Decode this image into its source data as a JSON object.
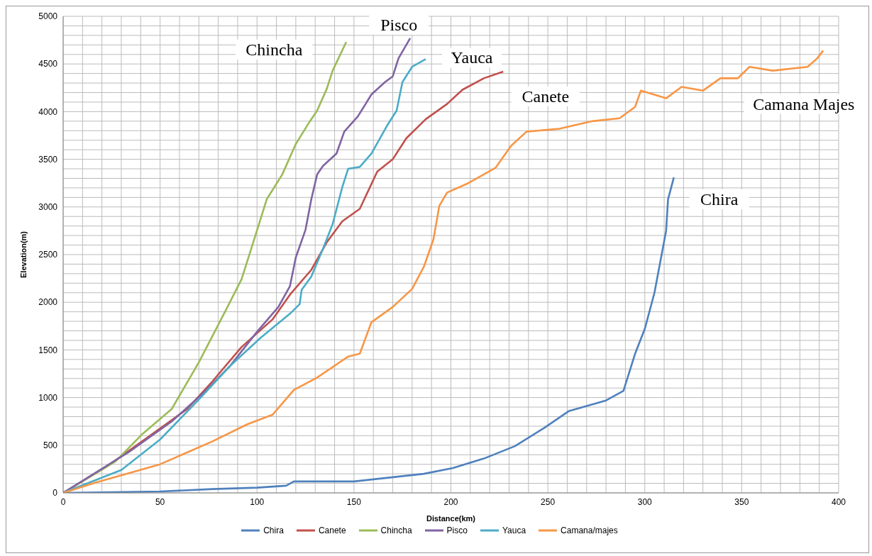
{
  "chart_data": {
    "type": "line",
    "xlabel": "Distance(km)",
    "ylabel": "Elevation(m)",
    "xlim": [
      0,
      400
    ],
    "ylim": [
      0,
      5000
    ],
    "xticks": [
      0,
      {
        "value": 10,
        "label": null
      },
      {
        "value": 20,
        "label": null
      },
      {
        "value": 30,
        "label": null
      },
      {
        "value": 40,
        "label": null
      },
      50,
      {
        "value": 60,
        "label": null
      },
      {
        "value": 70,
        "label": null
      },
      {
        "value": 80,
        "label": null
      },
      {
        "value": 90,
        "label": null
      },
      100,
      {
        "value": 110,
        "label": null
      },
      {
        "value": 120,
        "label": null
      },
      {
        "value": 130,
        "label": null
      },
      {
        "value": 140,
        "label": null
      },
      150,
      {
        "value": 160,
        "label": null
      },
      {
        "value": 170,
        "label": null
      },
      {
        "value": 180,
        "label": null
      },
      {
        "value": 190,
        "label": null
      },
      200,
      {
        "value": 210,
        "label": null
      },
      {
        "value": 220,
        "label": null
      },
      {
        "value": 230,
        "label": null
      },
      {
        "value": 240,
        "label": null
      },
      250,
      {
        "value": 260,
        "label": null
      },
      {
        "value": 270,
        "label": null
      },
      {
        "value": 280,
        "label": null
      },
      {
        "value": 290,
        "label": null
      },
      300,
      {
        "value": 310,
        "label": null
      },
      {
        "value": 320,
        "label": null
      },
      {
        "value": 330,
        "label": null
      },
      {
        "value": 340,
        "label": null
      },
      350,
      {
        "value": 360,
        "label": null
      },
      {
        "value": 370,
        "label": null
      },
      {
        "value": 380,
        "label": null
      },
      {
        "value": 390,
        "label": null
      },
      400
    ],
    "yticks": [
      0,
      {
        "value": 100,
        "label": null
      },
      {
        "value": 200,
        "label": null
      },
      {
        "value": 300,
        "label": null
      },
      {
        "value": 400,
        "label": null
      },
      500,
      {
        "value": 600,
        "label": null
      },
      {
        "value": 700,
        "label": null
      },
      {
        "value": 800,
        "label": null
      },
      {
        "value": 900,
        "label": null
      },
      1000,
      {
        "value": 1100,
        "label": null
      },
      {
        "value": 1200,
        "label": null
      },
      {
        "value": 1300,
        "label": null
      },
      {
        "value": 1400,
        "label": null
      },
      1500,
      {
        "value": 1600,
        "label": null
      },
      {
        "value": 1700,
        "label": null
      },
      {
        "value": 1800,
        "label": null
      },
      {
        "value": 1900,
        "label": null
      },
      2000,
      {
        "value": 2100,
        "label": null
      },
      {
        "value": 2200,
        "label": null
      },
      {
        "value": 2300,
        "label": null
      },
      {
        "value": 2400,
        "label": null
      },
      2500,
      {
        "value": 2600,
        "label": null
      },
      {
        "value": 2700,
        "label": null
      },
      {
        "value": 2800,
        "label": null
      },
      {
        "value": 2900,
        "label": null
      },
      3000,
      {
        "value": 3100,
        "label": null
      },
      {
        "value": 3200,
        "label": null
      },
      {
        "value": 3300,
        "label": null
      },
      {
        "value": 3400,
        "label": null
      },
      3500,
      {
        "value": 3600,
        "label": null
      },
      {
        "value": 3700,
        "label": null
      },
      {
        "value": 3800,
        "label": null
      },
      {
        "value": 3900,
        "label": null
      },
      4000,
      {
        "value": 4100,
        "label": null
      },
      {
        "value": 4200,
        "label": null
      },
      {
        "value": 4300,
        "label": null
      },
      {
        "value": 4400,
        "label": null
      },
      4500,
      {
        "value": 4600,
        "label": null
      },
      {
        "value": 4700,
        "label": null
      },
      {
        "value": 4800,
        "label": null
      },
      {
        "value": 4900,
        "label": null
      },
      5000
    ],
    "grid": true,
    "legend": "bottom",
    "series": [
      {
        "name": "Chira",
        "color": "#4f81bd",
        "x": [
          0,
          50,
          77,
          100,
          115,
          119,
          150,
          186,
          201,
          217,
          233,
          248,
          261,
          280,
          289,
          295,
          300,
          305,
          311,
          312,
          315
        ],
        "values": [
          0,
          15,
          40,
          55,
          75,
          120,
          120,
          200,
          260,
          360,
          490,
          680,
          860,
          970,
          1070,
          1460,
          1720,
          2100,
          2750,
          3080,
          3310
        ]
      },
      {
        "name": "Canete",
        "color": "#c0504d",
        "x": [
          0,
          22,
          42,
          64,
          77,
          92,
          108,
          117,
          128,
          136,
          144,
          153,
          162,
          170,
          177,
          187,
          198,
          206,
          217,
          227
        ],
        "values": [
          0,
          270,
          560,
          880,
          1170,
          1530,
          1820,
          2080,
          2340,
          2630,
          2850,
          2980,
          3370,
          3500,
          3720,
          3920,
          4080,
          4230,
          4350,
          4420
        ]
      },
      {
        "name": "Chincha",
        "color": "#9bbb59",
        "x": [
          0,
          27,
          41,
          56,
          70,
          84,
          92,
          97,
          105,
          113,
          120,
          127,
          131,
          136,
          139,
          146
        ],
        "values": [
          0,
          330,
          620,
          880,
          1370,
          1920,
          2240,
          2560,
          3080,
          3340,
          3660,
          3890,
          4010,
          4240,
          4430,
          4730
        ]
      },
      {
        "name": "Pisco",
        "color": "#8064a2",
        "x": [
          0,
          34,
          56,
          73,
          86,
          100,
          111,
          117,
          120,
          125,
          128,
          131,
          134,
          141,
          145,
          152,
          156,
          159,
          166,
          170,
          173,
          179
        ],
        "values": [
          0,
          430,
          750,
          1060,
          1330,
          1690,
          1950,
          2170,
          2470,
          2760,
          3080,
          3340,
          3430,
          3560,
          3790,
          3950,
          4080,
          4180,
          4310,
          4370,
          4560,
          4770
        ]
      },
      {
        "name": "Yauca",
        "color": "#4bacc6",
        "x": [
          0,
          30,
          50,
          70,
          86,
          102,
          117,
          122,
          123,
          128,
          134,
          139,
          144,
          147,
          153,
          159,
          167,
          172,
          175,
          180,
          187
        ],
        "values": [
          0,
          240,
          560,
          980,
          1330,
          1630,
          1880,
          1980,
          2130,
          2270,
          2560,
          2820,
          3210,
          3400,
          3420,
          3560,
          3850,
          4010,
          4310,
          4470,
          4550
        ]
      },
      {
        "name": "Camana/majes",
        "color": "#f79646",
        "x": [
          0,
          17,
          50,
          77,
          95,
          108,
          119,
          131,
          147,
          153,
          159,
          170,
          180,
          186,
          191,
          194,
          198,
          209,
          223,
          231,
          239,
          256,
          273,
          287,
          295,
          298,
          311,
          319,
          330,
          339,
          348,
          354,
          366,
          384,
          389,
          392
        ],
        "values": [
          0,
          110,
          300,
          540,
          720,
          820,
          1080,
          1210,
          1430,
          1460,
          1790,
          1950,
          2140,
          2370,
          2660,
          3010,
          3150,
          3250,
          3410,
          3640,
          3790,
          3820,
          3900,
          3930,
          4050,
          4220,
          4140,
          4260,
          4220,
          4350,
          4350,
          4470,
          4430,
          4470,
          4560,
          4640
        ]
      }
    ],
    "annotations": [
      "Chincha",
      "Pisco",
      "Yauca",
      "Canete",
      "Camana Majes",
      "Chira"
    ]
  }
}
